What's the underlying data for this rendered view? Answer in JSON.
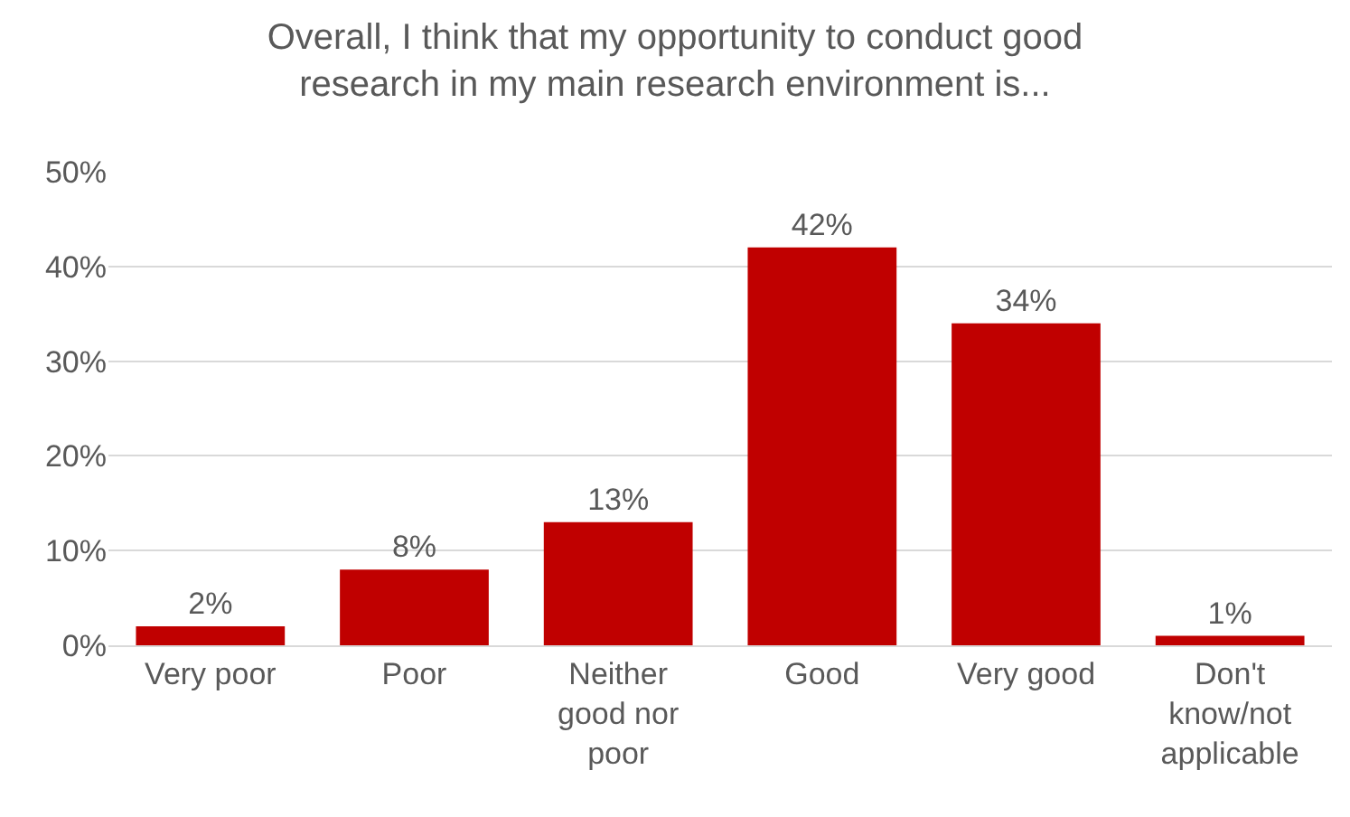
{
  "chart_data": {
    "type": "bar",
    "title": "Overall, I think that my opportunity to conduct good research in my main research environment is...",
    "categories": [
      "Very poor",
      "Poor",
      "Neither good nor poor",
      "Good",
      "Very good",
      "Don't know/not applicable"
    ],
    "values": [
      2,
      8,
      13,
      42,
      34,
      1
    ],
    "color": "#c00000",
    "ylim": [
      0,
      50
    ],
    "yticks": [
      {
        "value": 0,
        "label": "0%"
      },
      {
        "value": 10,
        "label": "10%"
      },
      {
        "value": 20,
        "label": "20%"
      },
      {
        "value": 30,
        "label": "30%"
      },
      {
        "value": 40,
        "label": "40%"
      },
      {
        "value": 50,
        "label": "50%"
      }
    ],
    "value_labels": [
      "2%",
      "8%",
      "13%",
      "42%",
      "34%",
      "1%"
    ],
    "grid": "y"
  }
}
